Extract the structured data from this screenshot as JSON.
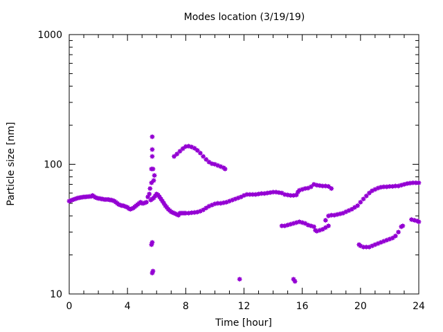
{
  "chart_data": {
    "type": "scatter",
    "title": "Modes location (3/19/19)",
    "xlabel": "Time [hour]",
    "ylabel": "Particle size [nm]",
    "xlim": [
      0,
      24
    ],
    "ylim": [
      10,
      1000
    ],
    "yscale": "log",
    "grid": false,
    "legend": "none",
    "marker_color": "#9400d3",
    "x_ticks": [
      0,
      4,
      8,
      12,
      16,
      20,
      24
    ],
    "x_tick_labels": [
      "0",
      "4",
      "8",
      "12",
      "16",
      "20",
      "24"
    ],
    "y_ticks": [
      10,
      100,
      1000
    ],
    "y_tick_labels": [
      "10",
      "100",
      "1000"
    ],
    "series": [
      {
        "points": [
          [
            0.0,
            52
          ],
          [
            0.1,
            52.5
          ],
          [
            0.2,
            53
          ],
          [
            0.3,
            53.5
          ],
          [
            0.4,
            54
          ],
          [
            0.5,
            54.5
          ],
          [
            0.6,
            55
          ],
          [
            0.7,
            55.2
          ],
          [
            0.8,
            55.5
          ],
          [
            0.9,
            55.7
          ],
          [
            1.0,
            56
          ],
          [
            1.1,
            56
          ],
          [
            1.2,
            56.2
          ],
          [
            1.3,
            56.3
          ],
          [
            1.4,
            56.5
          ],
          [
            1.5,
            56.5
          ],
          [
            1.6,
            57.5
          ],
          [
            1.7,
            56.5
          ],
          [
            1.8,
            55.5
          ],
          [
            1.9,
            55
          ],
          [
            2.0,
            54.5
          ],
          [
            2.1,
            54.5
          ],
          [
            2.2,
            54
          ],
          [
            2.3,
            54
          ],
          [
            2.4,
            53.5
          ],
          [
            2.5,
            53.5
          ],
          [
            2.6,
            53.5
          ],
          [
            2.7,
            53.5
          ],
          [
            2.8,
            53
          ],
          [
            2.9,
            53
          ],
          [
            3.0,
            52.5
          ],
          [
            3.1,
            52
          ],
          [
            3.2,
            51
          ],
          [
            3.3,
            50
          ],
          [
            3.4,
            49
          ],
          [
            3.5,
            48.5
          ],
          [
            3.6,
            48
          ],
          [
            3.7,
            48
          ],
          [
            3.8,
            47.5
          ],
          [
            3.9,
            47
          ],
          [
            4.0,
            46.5
          ],
          [
            4.1,
            45.5
          ],
          [
            4.2,
            45
          ],
          [
            4.3,
            45.5
          ],
          [
            4.4,
            46
          ],
          [
            4.5,
            47
          ],
          [
            4.6,
            48
          ],
          [
            4.7,
            49
          ],
          [
            4.8,
            50
          ],
          [
            4.9,
            51
          ],
          [
            5.0,
            50
          ],
          [
            5.1,
            50
          ],
          [
            5.2,
            50.5
          ],
          [
            5.3,
            51
          ],
          [
            5.4,
            56
          ],
          [
            5.5,
            59
          ],
          [
            5.6,
            53
          ],
          [
            5.7,
            54
          ],
          [
            5.8,
            55
          ],
          [
            5.9,
            57
          ],
          [
            6.0,
            59
          ],
          [
            6.1,
            58
          ],
          [
            6.2,
            56
          ],
          [
            6.3,
            54
          ],
          [
            6.4,
            52
          ],
          [
            6.5,
            50
          ],
          [
            6.6,
            48
          ],
          [
            6.7,
            46.5
          ],
          [
            6.8,
            45
          ],
          [
            6.9,
            44
          ],
          [
            7.0,
            43
          ],
          [
            7.1,
            42.5
          ],
          [
            7.2,
            42
          ],
          [
            7.3,
            41.5
          ],
          [
            7.4,
            41
          ],
          [
            7.5,
            40.5
          ],
          [
            7.6,
            42
          ],
          [
            7.7,
            42
          ],
          [
            7.8,
            42
          ],
          [
            7.9,
            42
          ],
          [
            8.0,
            42
          ],
          [
            8.2,
            42
          ],
          [
            8.4,
            42.3
          ],
          [
            8.6,
            42.5
          ],
          [
            8.8,
            42.8
          ],
          [
            9.0,
            43.5
          ],
          [
            9.2,
            44.5
          ],
          [
            9.4,
            46
          ],
          [
            9.6,
            47.5
          ],
          [
            9.8,
            48.5
          ],
          [
            10.0,
            49.5
          ],
          [
            10.2,
            50
          ],
          [
            10.4,
            50
          ],
          [
            10.6,
            50.5
          ],
          [
            10.8,
            51
          ],
          [
            11.0,
            52
          ],
          [
            11.2,
            53
          ],
          [
            11.4,
            54
          ],
          [
            11.6,
            55
          ],
          [
            11.8,
            56
          ],
          [
            12.0,
            57.5
          ],
          [
            12.2,
            58.5
          ],
          [
            12.4,
            58.5
          ],
          [
            12.6,
            58.5
          ],
          [
            12.8,
            58.5
          ],
          [
            13.0,
            59
          ],
          [
            13.2,
            59.5
          ],
          [
            13.4,
            59.5
          ],
          [
            13.6,
            60
          ],
          [
            13.8,
            60.5
          ],
          [
            14.0,
            61
          ],
          [
            14.2,
            61
          ],
          [
            14.4,
            60.5
          ],
          [
            14.6,
            60
          ],
          [
            14.8,
            58.5
          ],
          [
            15.0,
            58
          ],
          [
            15.2,
            57.5
          ],
          [
            15.4,
            57.5
          ],
          [
            15.6,
            58
          ],
          [
            15.7,
            61
          ],
          [
            15.8,
            63
          ],
          [
            16.0,
            64
          ],
          [
            16.2,
            65
          ],
          [
            16.4,
            65.5
          ],
          [
            16.6,
            67
          ],
          [
            16.8,
            70
          ],
          [
            17.0,
            69
          ],
          [
            17.2,
            68.5
          ],
          [
            17.4,
            68
          ],
          [
            17.6,
            68
          ],
          [
            17.8,
            67.5
          ],
          [
            18.0,
            65
          ],
          [
            17.6,
            37
          ],
          [
            17.8,
            40
          ],
          [
            18.0,
            40.5
          ],
          [
            18.2,
            40.5
          ],
          [
            18.4,
            41
          ],
          [
            18.6,
            41.5
          ],
          [
            18.8,
            42
          ],
          [
            19.0,
            43
          ],
          [
            19.2,
            44
          ],
          [
            19.4,
            45
          ],
          [
            19.6,
            46.5
          ],
          [
            19.8,
            48
          ],
          [
            20.0,
            51
          ],
          [
            20.2,
            54
          ],
          [
            20.4,
            57
          ],
          [
            20.6,
            60
          ],
          [
            20.8,
            62.5
          ],
          [
            21.0,
            64
          ],
          [
            21.2,
            65.5
          ],
          [
            21.4,
            66.5
          ],
          [
            21.6,
            67
          ],
          [
            21.8,
            67
          ],
          [
            22.0,
            67.5
          ],
          [
            22.2,
            67.5
          ],
          [
            22.4,
            68
          ],
          [
            22.6,
            68
          ],
          [
            22.8,
            69
          ],
          [
            23.0,
            70
          ],
          [
            23.2,
            71
          ],
          [
            23.4,
            71.5
          ],
          [
            23.6,
            72
          ],
          [
            23.8,
            72
          ],
          [
            24.0,
            72
          ],
          [
            5.7,
            163
          ],
          [
            5.7,
            130
          ],
          [
            5.7,
            115
          ],
          [
            5.65,
            92
          ],
          [
            5.75,
            92
          ],
          [
            5.85,
            82
          ],
          [
            5.8,
            75
          ],
          [
            5.65,
            72
          ],
          [
            5.55,
            65
          ],
          [
            5.7,
            25
          ],
          [
            5.65,
            24
          ],
          [
            5.75,
            15
          ],
          [
            5.7,
            14.5
          ],
          [
            7.2,
            115
          ],
          [
            7.4,
            120
          ],
          [
            7.6,
            126
          ],
          [
            7.8,
            132
          ],
          [
            8.0,
            137
          ],
          [
            8.2,
            138
          ],
          [
            8.4,
            136
          ],
          [
            8.6,
            133
          ],
          [
            8.8,
            128
          ],
          [
            9.0,
            122
          ],
          [
            9.2,
            115
          ],
          [
            9.4,
            109
          ],
          [
            9.6,
            104
          ],
          [
            9.8,
            101
          ],
          [
            10.0,
            100
          ],
          [
            10.2,
            98
          ],
          [
            10.4,
            96
          ],
          [
            10.6,
            94
          ],
          [
            10.7,
            92
          ],
          [
            11.7,
            13
          ],
          [
            15.4,
            13
          ],
          [
            15.5,
            12.5
          ],
          [
            14.6,
            33.5
          ],
          [
            14.8,
            33.5
          ],
          [
            15.0,
            34
          ],
          [
            15.2,
            34.5
          ],
          [
            15.4,
            35
          ],
          [
            15.6,
            35.5
          ],
          [
            15.8,
            36
          ],
          [
            16.0,
            35.5
          ],
          [
            16.2,
            35
          ],
          [
            16.4,
            34
          ],
          [
            16.6,
            33.5
          ],
          [
            16.8,
            33
          ],
          [
            16.9,
            31
          ],
          [
            17.0,
            30.5
          ],
          [
            17.2,
            31
          ],
          [
            17.4,
            31.5
          ],
          [
            17.6,
            32.5
          ],
          [
            17.8,
            33.5
          ],
          [
            19.9,
            24
          ],
          [
            20.0,
            23.5
          ],
          [
            20.2,
            23
          ],
          [
            20.4,
            23
          ],
          [
            20.6,
            23
          ],
          [
            20.8,
            23.5
          ],
          [
            21.0,
            24
          ],
          [
            21.2,
            24.5
          ],
          [
            21.4,
            25
          ],
          [
            21.6,
            25.5
          ],
          [
            21.8,
            26
          ],
          [
            22.0,
            26.5
          ],
          [
            22.2,
            27
          ],
          [
            22.4,
            28
          ],
          [
            22.6,
            30
          ],
          [
            22.8,
            33
          ],
          [
            22.9,
            33.5
          ],
          [
            23.5,
            37.5
          ],
          [
            23.7,
            37
          ],
          [
            23.9,
            36.5
          ],
          [
            24.0,
            36
          ]
        ]
      }
    ]
  }
}
